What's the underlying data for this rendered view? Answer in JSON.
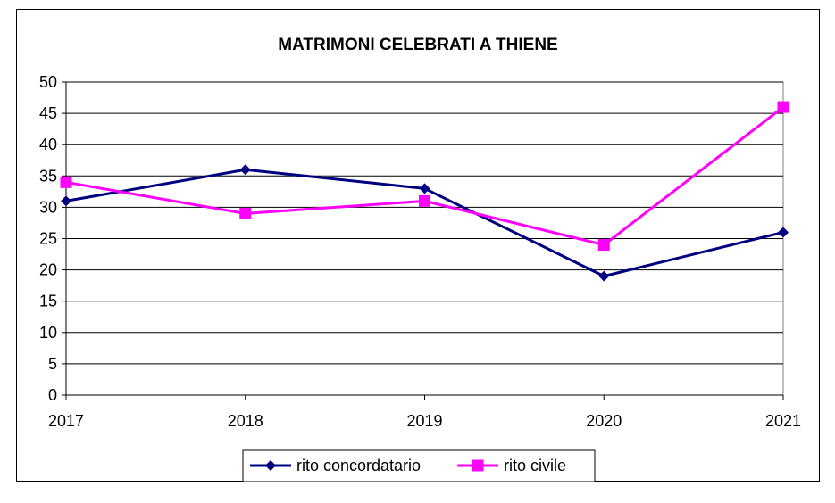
{
  "chart_data": {
    "type": "line",
    "title": "MATRIMONI CELEBRATI A THIENE",
    "xlabel": "",
    "ylabel": "",
    "categories": [
      "2017",
      "2018",
      "2019",
      "2020",
      "2021"
    ],
    "ylim": [
      0,
      50
    ],
    "yticks": [
      0,
      5,
      10,
      15,
      20,
      25,
      30,
      35,
      40,
      45,
      50
    ],
    "grid": true,
    "legend_position": "bottom",
    "series": [
      {
        "name": "rito concordatario",
        "values": [
          31,
          36,
          33,
          19,
          26
        ],
        "color": "#000080",
        "marker": "diamond"
      },
      {
        "name": "rito civile",
        "values": [
          34,
          29,
          31,
          24,
          46
        ],
        "color": "#ff00ff",
        "marker": "square"
      }
    ]
  }
}
